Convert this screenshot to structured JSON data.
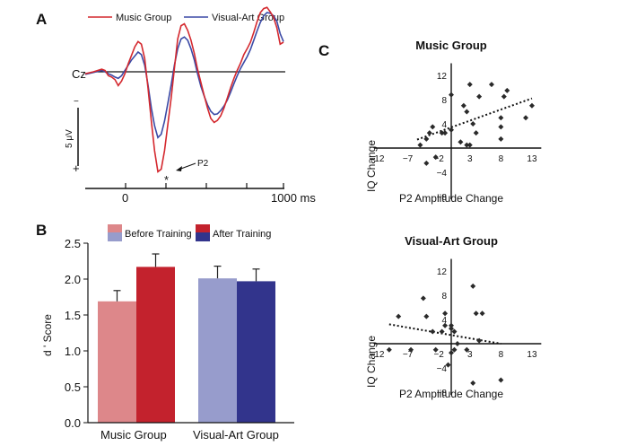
{
  "panels": {
    "a": "A",
    "b": "B",
    "c": "C"
  },
  "chart_data": [
    {
      "id": "erp",
      "type": "line",
      "legend": [
        "Music Group",
        "Visual-Art Group"
      ],
      "colors": {
        "music": "#d4282e",
        "visual": "#3b4aa6",
        "axis": "#111111"
      },
      "channel_label": "Cz",
      "scale_label": "5 μV",
      "scale_minus": "−",
      "scale_plus": "+",
      "peak_label": "P2",
      "peak_marker": "*",
      "x_ticks": [
        "0",
        "1000 ms"
      ],
      "xlim": [
        -200,
        1000
      ],
      "ylim_uV": [
        -7.5,
        17
      ],
      "series": [
        {
          "name": "Music Group",
          "x": [
            -200,
            -150,
            -100,
            -80,
            -60,
            -40,
            -20,
            0,
            20,
            40,
            60,
            80,
            100,
            120,
            140,
            160,
            180,
            200,
            220,
            240,
            260,
            280,
            300,
            320,
            340,
            360,
            380,
            400,
            420,
            440,
            460,
            480,
            500,
            520,
            540,
            560,
            580,
            600,
            620,
            640,
            660,
            680,
            700,
            720,
            740,
            760,
            780,
            800,
            820,
            840,
            860,
            880,
            900,
            920,
            940,
            960,
            980,
            1000
          ],
          "y": [
            0.3,
            0.0,
            -0.4,
            -0.2,
            0.6,
            0.8,
            1.2,
            2.1,
            1.4,
            0.3,
            -1.2,
            -2.5,
            -3.8,
            -4.6,
            -4.2,
            -2.0,
            2.5,
            7.5,
            12.0,
            15.2,
            14.8,
            12.0,
            8.0,
            4.0,
            -0.5,
            -5.0,
            -7.0,
            -7.3,
            -6.3,
            -4.8,
            -2.8,
            -0.4,
            1.6,
            3.6,
            5.5,
            7.1,
            7.7,
            7.4,
            6.7,
            5.5,
            4.0,
            2.4,
            1.0,
            -0.2,
            -1.3,
            -2.6,
            -3.5,
            -4.5,
            -6.0,
            -7.6,
            -9.0,
            -9.6,
            -9.8,
            -9.1,
            -8.3,
            -6.7,
            -4.2,
            -4.5
          ]
        },
        {
          "name": "Visual-Art Group",
          "x": [
            -200,
            -150,
            -100,
            -80,
            -60,
            -40,
            -20,
            0,
            20,
            40,
            60,
            80,
            100,
            120,
            140,
            160,
            180,
            200,
            220,
            240,
            260,
            280,
            300,
            320,
            340,
            360,
            380,
            400,
            420,
            440,
            460,
            480,
            500,
            520,
            540,
            560,
            580,
            600,
            620,
            640,
            660,
            680,
            700,
            720,
            740,
            760,
            780,
            800,
            820,
            840,
            860,
            880,
            900,
            920,
            940,
            960,
            980,
            1000
          ],
          "y": [
            0.4,
            0.1,
            -0.2,
            0.0,
            0.3,
            0.5,
            0.8,
            1.0,
            0.6,
            -0.2,
            -1.0,
            -1.8,
            -2.4,
            -3.0,
            -2.6,
            -1.0,
            2.0,
            5.5,
            8.2,
            10.0,
            9.5,
            7.5,
            4.8,
            2.0,
            -1.0,
            -3.5,
            -5.0,
            -5.3,
            -4.8,
            -3.5,
            -1.8,
            0.3,
            2.2,
            3.7,
            5.0,
            6.0,
            6.5,
            6.4,
            5.9,
            5.2,
            4.3,
            3.1,
            1.8,
            0.6,
            -0.5,
            -1.4,
            -2.3,
            -3.4,
            -4.8,
            -6.2,
            -7.5,
            -8.5,
            -9.0,
            -8.9,
            -8.5,
            -7.7,
            -5.8,
            -4.6
          ]
        }
      ]
    },
    {
      "id": "dprime",
      "type": "bar",
      "categories": [
        "Music Group",
        "Visual-Art Group"
      ],
      "legend": [
        "Before Training",
        "After Training"
      ],
      "ylabel": "d ' Score",
      "ylim": [
        0,
        2.5
      ],
      "y_ticks": [
        "0.0",
        "0.5",
        "1.0",
        "1.5",
        "2.0",
        "2.5"
      ],
      "series": [
        {
          "name": "Before Training",
          "values": [
            1.69,
            2.01
          ],
          "errors": [
            0.15,
            0.17
          ],
          "colors": [
            "#dd878a",
            "#979ccc"
          ]
        },
        {
          "name": "After Training",
          "values": [
            2.17,
            1.97
          ],
          "errors": [
            0.18,
            0.17
          ],
          "colors": [
            "#c3222d",
            "#32348c"
          ]
        }
      ]
    },
    {
      "id": "scatter-music",
      "type": "scatter",
      "title": "Music Group",
      "xlabel": "P2 Amplitude Change",
      "ylabel": "IQ Change",
      "xlim": [
        -12,
        14.5
      ],
      "ylim": [
        -8,
        14
      ],
      "x_ticks": [
        "−12",
        "−7",
        "−2",
        "3",
        "8",
        "13"
      ],
      "y_ticks": [
        "12",
        "8",
        "4",
        "−4",
        "−8"
      ],
      "trend": [
        [
          -5.5,
          1.4
        ],
        [
          13,
          8.2
        ]
      ],
      "points": [
        [
          -5,
          0.5
        ],
        [
          -4,
          1.5
        ],
        [
          -4,
          -2.5
        ],
        [
          -3.5,
          2.5
        ],
        [
          -3,
          3.5
        ],
        [
          -2.5,
          -1.5
        ],
        [
          -1.5,
          2.5
        ],
        [
          -1,
          2.5
        ],
        [
          0,
          3
        ],
        [
          0,
          8.8
        ],
        [
          1.5,
          1
        ],
        [
          2,
          7
        ],
        [
          2.5,
          6
        ],
        [
          2.5,
          0.5
        ],
        [
          3,
          0.5
        ],
        [
          3,
          10.5
        ],
        [
          3.5,
          4
        ],
        [
          4,
          2.5
        ],
        [
          4.5,
          8.5
        ],
        [
          6.5,
          10.5
        ],
        [
          8,
          5
        ],
        [
          8,
          3.5
        ],
        [
          8,
          1.5
        ],
        [
          8.5,
          8.5
        ],
        [
          9,
          9.5
        ],
        [
          12,
          5
        ],
        [
          13,
          7
        ]
      ],
      "color": "#2a2a2a"
    },
    {
      "id": "scatter-visual",
      "type": "scatter",
      "title": "Visual-Art Group",
      "xlabel": "P2 Amplitude Change",
      "ylabel": "IQ Change",
      "xlim": [
        -12,
        14.5
      ],
      "ylim": [
        -8,
        14
      ],
      "x_ticks": [
        "−12",
        "−7",
        "−2",
        "3",
        "8",
        "13"
      ],
      "y_ticks": [
        "12",
        "8",
        "4",
        "−4",
        "−8"
      ],
      "trend": [
        [
          -10,
          3.2
        ],
        [
          8,
          0
        ]
      ],
      "points": [
        [
          -10,
          -1
        ],
        [
          -8.5,
          4.5
        ],
        [
          -6.5,
          -1
        ],
        [
          -4.5,
          7.5
        ],
        [
          -4,
          4.5
        ],
        [
          -3,
          2
        ],
        [
          -2.5,
          -1
        ],
        [
          -1.5,
          2
        ],
        [
          -1,
          5
        ],
        [
          -1,
          3
        ],
        [
          -0.5,
          -3.5
        ],
        [
          0,
          -1.5
        ],
        [
          0,
          2.5
        ],
        [
          0,
          3
        ],
        [
          0.5,
          2
        ],
        [
          0.5,
          -1
        ],
        [
          1,
          0
        ],
        [
          2.5,
          -1
        ],
        [
          3.5,
          9.5
        ],
        [
          4,
          5
        ],
        [
          4.5,
          0.5
        ],
        [
          5,
          5
        ],
        [
          8,
          -6
        ],
        [
          3.5,
          -6.5
        ]
      ],
      "color": "#2a2a2a"
    }
  ]
}
